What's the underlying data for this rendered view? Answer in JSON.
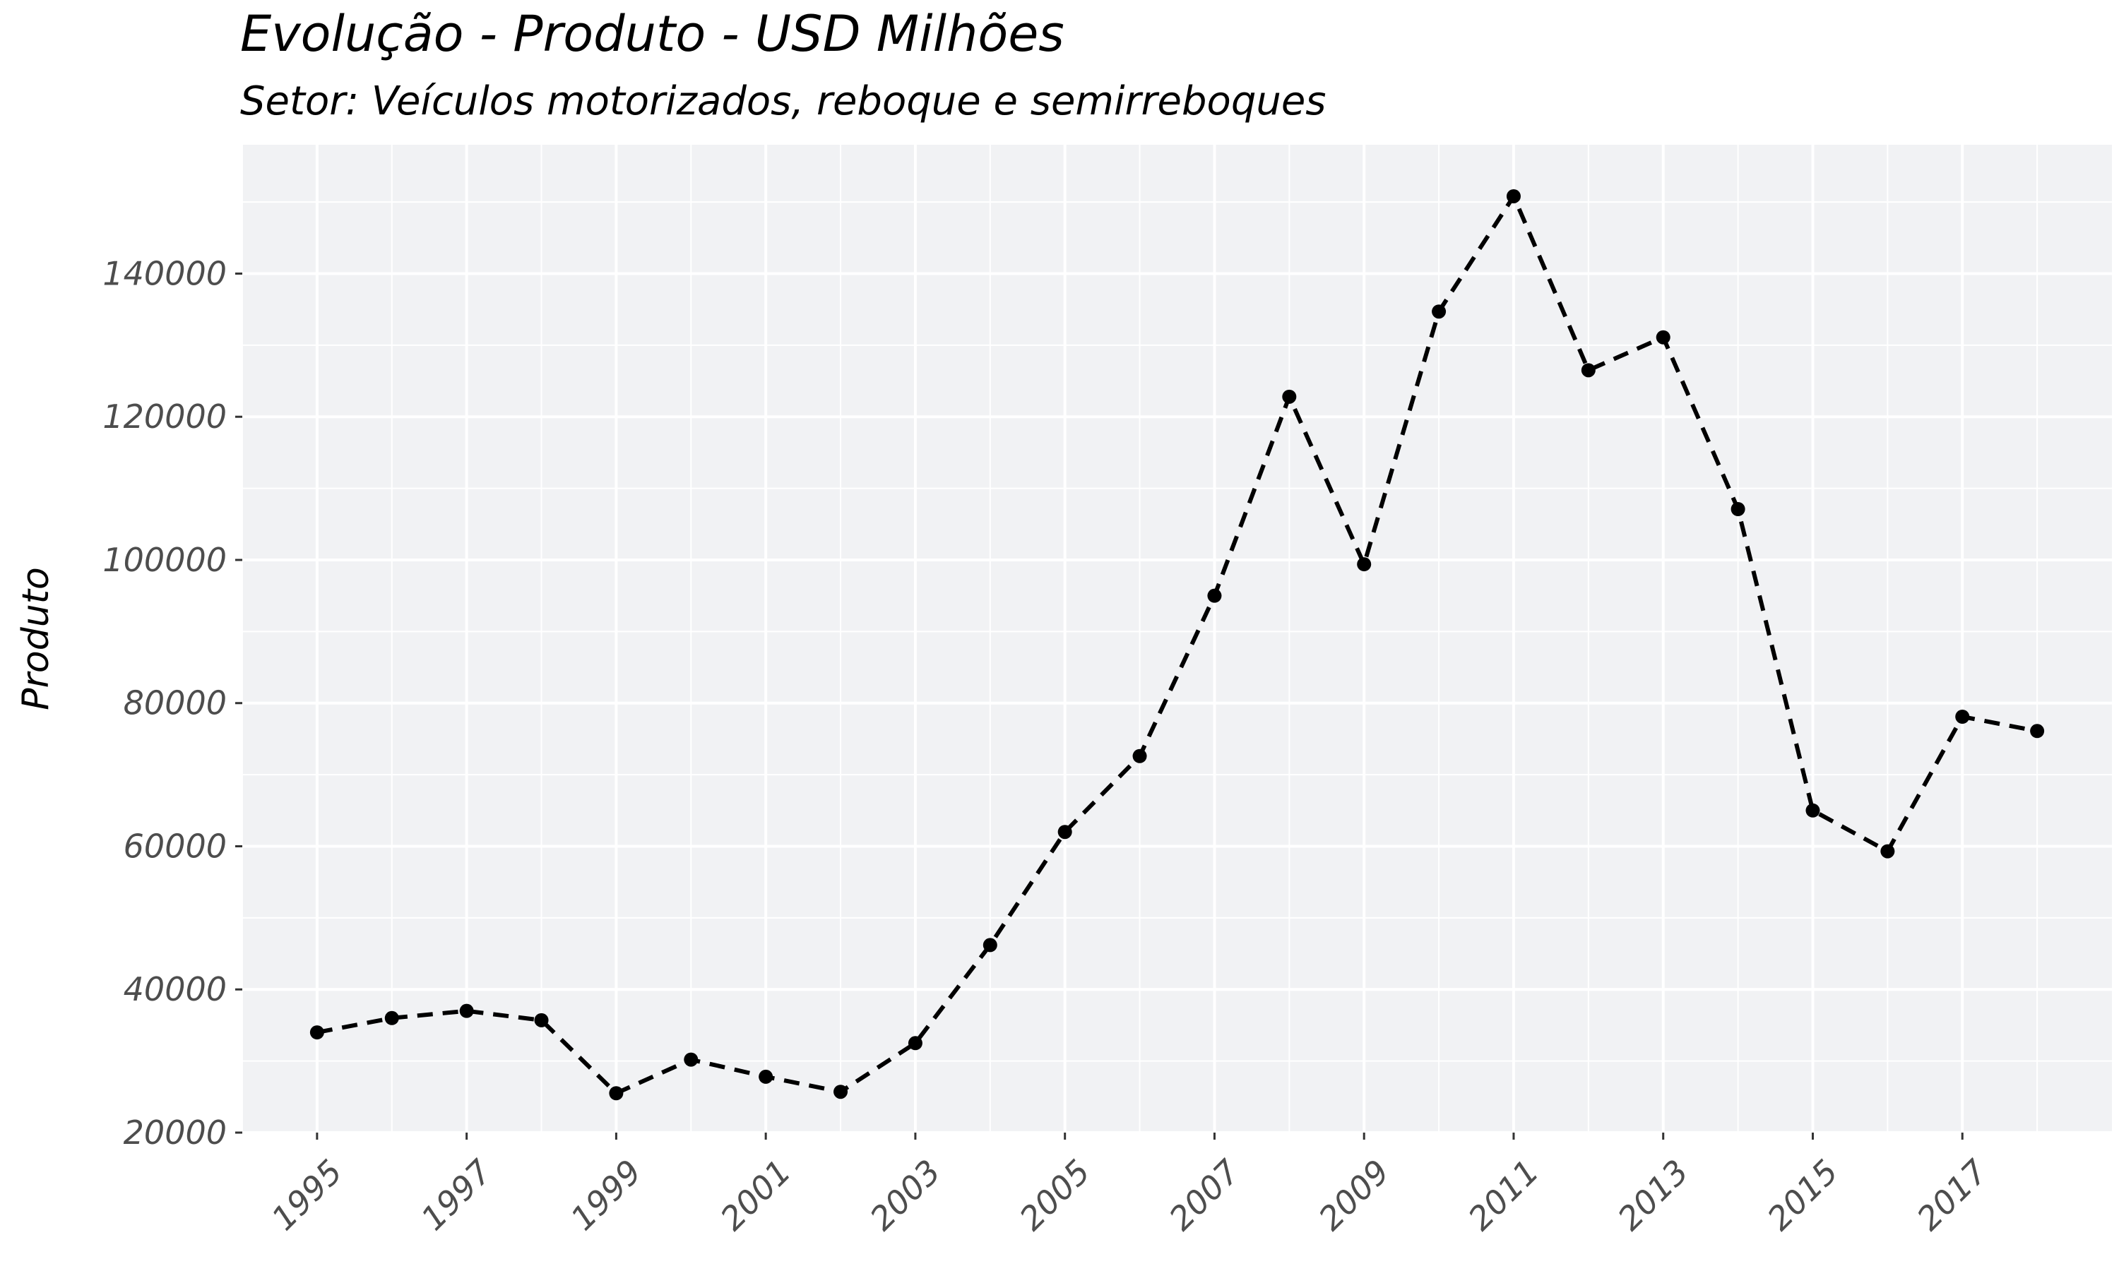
{
  "chart_data": {
    "type": "line",
    "title": "Evolução - Produto - USD Milhões",
    "subtitle": "Setor: Veículos motorizados, reboque e semirreboques",
    "xlabel": "",
    "ylabel": "Produto",
    "x": [
      1995,
      1996,
      1997,
      1998,
      1999,
      2000,
      2001,
      2002,
      2003,
      2004,
      2005,
      2006,
      2007,
      2008,
      2009,
      2010,
      2011,
      2012,
      2013,
      2014,
      2015,
      2016,
      2017,
      2018
    ],
    "series": [
      {
        "values": [
          34000,
          36000,
          37000,
          35700,
          25500,
          30200,
          27800,
          25700,
          32500,
          46200,
          62000,
          72600,
          95000,
          122800,
          99400,
          134700,
          150800,
          126500,
          131100,
          107100,
          65000,
          59300,
          78100,
          76100
        ],
        "line_style": "dashed",
        "color": "#000000"
      }
    ],
    "xticks": [
      "1995",
      "1997",
      "1999",
      "2001",
      "2003",
      "2005",
      "2007",
      "2009",
      "2011",
      "2013",
      "2015",
      "2017"
    ],
    "yticks": [
      "20000",
      "40000",
      "60000",
      "80000",
      "100000",
      "120000",
      "140000"
    ],
    "xlim": [
      1994,
      2019
    ],
    "ylim": [
      20000,
      158000
    ],
    "grid": true,
    "legend": "none",
    "panel_color": "#f1f2f4",
    "grid_color": "#ffffff"
  }
}
